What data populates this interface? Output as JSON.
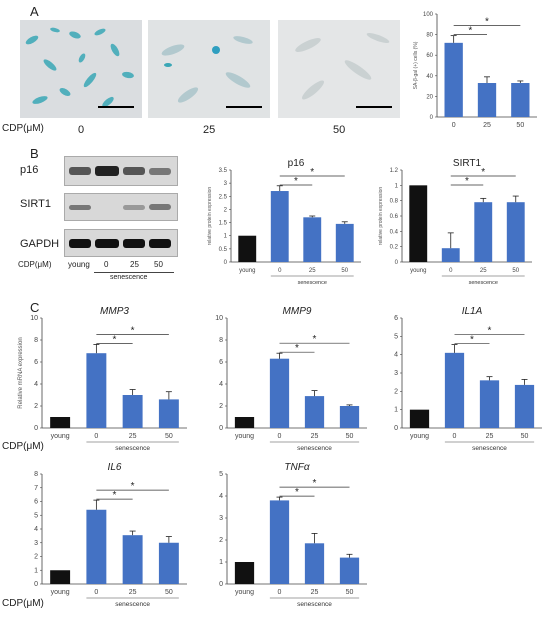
{
  "panels": {
    "a": "A",
    "b": "B",
    "c": "C"
  },
  "panelA": {
    "dose_label": "CDP(μM)",
    "doses": [
      "0",
      "25",
      "50"
    ],
    "colors": {
      "bg": "#d6d9dc",
      "cells_blue": "#3aa7b6",
      "cells_pale": "#e8ebec"
    }
  },
  "panelB": {
    "proteins": [
      "p16",
      "SIRT1",
      "GAPDH"
    ],
    "lanes": [
      "young",
      "0",
      "25",
      "50"
    ],
    "dose_label": "CDP(μM)",
    "group_label": "senescence"
  },
  "colors": {
    "blue": "#4472c4",
    "black": "#111111"
  },
  "chart_data": [
    {
      "id": "sa-bgal",
      "type": "bar",
      "title": "",
      "ylabel": "SA-β-gal (+) cells (%)",
      "xlabel": "CDP(μM)",
      "categories": [
        "0",
        "25",
        "50"
      ],
      "values": [
        72,
        33,
        33
      ],
      "errors": [
        7,
        6,
        2
      ],
      "colors": [
        "#4472c4",
        "#4472c4",
        "#4472c4"
      ],
      "ylim": [
        0,
        100
      ],
      "yticks": [
        "0",
        "20",
        "40",
        "60",
        "80",
        "100"
      ],
      "sig": [
        "*",
        "*"
      ]
    },
    {
      "id": "p16",
      "type": "bar",
      "title": "p16",
      "ylabel": "relative protein expression",
      "categories": [
        "young",
        "0",
        "25",
        "50"
      ],
      "values": [
        1.0,
        2.7,
        1.7,
        1.45
      ],
      "errors": [
        0,
        0.2,
        0.05,
        0.08
      ],
      "colors": [
        "#111111",
        "#4472c4",
        "#4472c4",
        "#4472c4"
      ],
      "ylim": [
        0,
        3.5
      ],
      "yticks": [
        "0",
        "0.5",
        "1",
        "1.5",
        "2",
        "2.5",
        "3",
        "3.5"
      ],
      "group_label": "senescence",
      "sig": [
        "*",
        "*"
      ]
    },
    {
      "id": "sirt1",
      "type": "bar",
      "title": "SIRT1",
      "ylabel": "relative protein expression",
      "categories": [
        "young",
        "0",
        "25",
        "50"
      ],
      "values": [
        1.0,
        0.18,
        0.78,
        0.78
      ],
      "errors": [
        0,
        0.2,
        0.05,
        0.08
      ],
      "colors": [
        "#111111",
        "#4472c4",
        "#4472c4",
        "#4472c4"
      ],
      "ylim": [
        0,
        1.2
      ],
      "yticks": [
        "0",
        "0.2",
        "0.4",
        "0.6",
        "0.8",
        "1",
        "1.2"
      ],
      "group_label": "senescence",
      "sig": [
        "*",
        "*"
      ]
    },
    {
      "id": "mmp3",
      "type": "bar",
      "title": "MMP3",
      "ylabel": "Relative mRNA expression",
      "categories": [
        "young",
        "0",
        "25",
        "50"
      ],
      "values": [
        1.0,
        6.8,
        3.0,
        2.6
      ],
      "errors": [
        0,
        0.8,
        0.5,
        0.7
      ],
      "colors": [
        "#111111",
        "#4472c4",
        "#4472c4",
        "#4472c4"
      ],
      "ylim": [
        0,
        10
      ],
      "yticks": [
        "0",
        "2",
        "4",
        "6",
        "8",
        "10"
      ],
      "group_label": "senescence",
      "sig": [
        "*",
        "*"
      ]
    },
    {
      "id": "mmp9",
      "type": "bar",
      "title": "MMP9",
      "ylabel": "",
      "categories": [
        "young",
        "0",
        "25",
        "50"
      ],
      "values": [
        1.0,
        6.3,
        2.9,
        2.0
      ],
      "errors": [
        0,
        0.5,
        0.5,
        0.1
      ],
      "colors": [
        "#111111",
        "#4472c4",
        "#4472c4",
        "#4472c4"
      ],
      "ylim": [
        0,
        10
      ],
      "yticks": [
        "0",
        "2",
        "4",
        "6",
        "8",
        "10"
      ],
      "group_label": "senescence",
      "sig": [
        "*",
        "*"
      ]
    },
    {
      "id": "il1a",
      "type": "bar",
      "title": "IL1A",
      "ylabel": "",
      "categories": [
        "young",
        "0",
        "25",
        "50"
      ],
      "values": [
        1.0,
        4.1,
        2.6,
        2.35
      ],
      "errors": [
        0,
        0.45,
        0.2,
        0.3
      ],
      "colors": [
        "#111111",
        "#4472c4",
        "#4472c4",
        "#4472c4"
      ],
      "ylim": [
        0,
        6
      ],
      "yticks": [
        "0",
        "1",
        "2",
        "3",
        "4",
        "5",
        "6"
      ],
      "group_label": "senescence",
      "sig": [
        "*",
        "*"
      ]
    },
    {
      "id": "il6",
      "type": "bar",
      "title": "IL6",
      "ylabel": "",
      "categories": [
        "young",
        "0",
        "25",
        "50"
      ],
      "values": [
        1.0,
        5.4,
        3.55,
        3.0
      ],
      "errors": [
        0,
        0.7,
        0.3,
        0.45
      ],
      "colors": [
        "#111111",
        "#4472c4",
        "#4472c4",
        "#4472c4"
      ],
      "ylim": [
        0,
        8
      ],
      "yticks": [
        "0",
        "1",
        "2",
        "3",
        "4",
        "5",
        "6",
        "7",
        "8"
      ],
      "group_label": "senescence",
      "sig": [
        "*",
        "*"
      ]
    },
    {
      "id": "tnfa",
      "type": "bar",
      "title": "TNFα",
      "ylabel": "",
      "categories": [
        "young",
        "0",
        "25",
        "50"
      ],
      "values": [
        1.0,
        3.8,
        1.85,
        1.2
      ],
      "errors": [
        0,
        0.15,
        0.45,
        0.15
      ],
      "colors": [
        "#111111",
        "#4472c4",
        "#4472c4",
        "#4472c4"
      ],
      "ylim": [
        0,
        5
      ],
      "yticks": [
        "0",
        "1",
        "2",
        "3",
        "4",
        "5"
      ],
      "group_label": "senescence",
      "sig": [
        "*",
        "*"
      ]
    }
  ],
  "dose_axis_label": "CDP(μM)"
}
